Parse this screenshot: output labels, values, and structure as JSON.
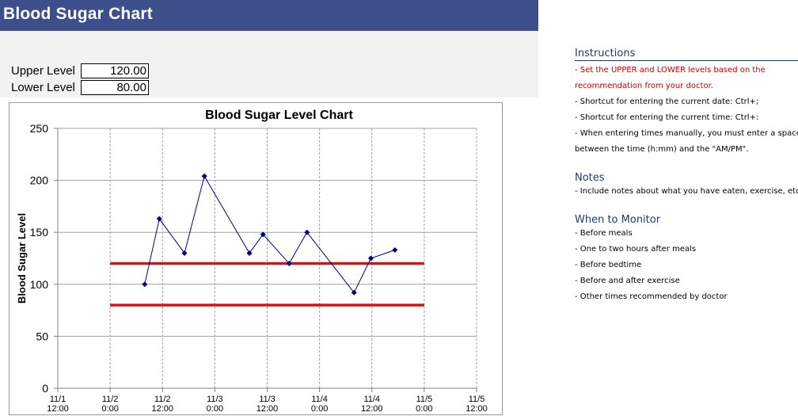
{
  "sheet": {
    "title": "Blood Sugar Chart",
    "upper_label": "Upper Level",
    "upper_value": "120.00",
    "lower_label": "Lower Level",
    "lower_value": "80.00"
  },
  "side": {
    "instructions_title": "Instructions",
    "instructions": [
      {
        "text": " - Set the UPPER and LOWER levels based on the",
        "color": "#cc0000"
      },
      {
        "text": "recommendation from your doctor.",
        "color": "#cc0000"
      },
      {
        "text": " - Shortcut for entering the current date: Ctrl+;",
        "color": "#000000"
      },
      {
        "text": " - Shortcut for entering the current time: Ctrl+:",
        "color": "#000000"
      },
      {
        "text": " - When entering times manually, you must enter a space",
        "color": "#000000"
      },
      {
        "text": "between the time (h:mm) and the \"AM/PM\".",
        "color": "#000000"
      }
    ],
    "notes_title": "Notes",
    "notes": [
      {
        "text": " - Include notes about what you have eaten, exercise, etc.",
        "color": "#000000"
      }
    ],
    "monitor_title": "When to Monitor",
    "monitor": [
      {
        "text": " - Before meals",
        "color": "#000000"
      },
      {
        "text": " - One to two hours after meals",
        "color": "#000000"
      },
      {
        "text": " - Before bedtime",
        "color": "#000000"
      },
      {
        "text": " - Before and after exercise",
        "color": "#000000"
      },
      {
        "text": " - Other times recommended by doctor",
        "color": "#000000"
      }
    ]
  },
  "chart_data": {
    "type": "line",
    "title": "Blood Sugar Level Chart",
    "ylabel": "Blood Sugar Level",
    "xlabel": "",
    "ylim": [
      0,
      250
    ],
    "yticks": [
      0,
      50,
      100,
      150,
      200,
      250
    ],
    "xlim_days": [
      1.5,
      5.5
    ],
    "xticks": [
      {
        "line1": "11/1",
        "line2": "12:00",
        "day": 1.5
      },
      {
        "line1": "11/2",
        "line2": "0:00",
        "day": 2.0
      },
      {
        "line1": "11/2",
        "line2": "12:00",
        "day": 2.5
      },
      {
        "line1": "11/3",
        "line2": "0:00",
        "day": 3.0
      },
      {
        "line1": "11/3",
        "line2": "12:00",
        "day": 3.5
      },
      {
        "line1": "11/4",
        "line2": "0:00",
        "day": 4.0
      },
      {
        "line1": "11/4",
        "line2": "12:00",
        "day": 4.5
      },
      {
        "line1": "11/5",
        "line2": "0:00",
        "day": 5.0
      },
      {
        "line1": "11/5",
        "line2": "12:00",
        "day": 5.5
      }
    ],
    "grid": true,
    "series": [
      {
        "name": "",
        "color": "#000080",
        "points": [
          {
            "day": 2.33,
            "value": 100
          },
          {
            "day": 2.47,
            "value": 163
          },
          {
            "day": 2.71,
            "value": 130
          },
          {
            "day": 2.9,
            "value": 204
          },
          {
            "day": 3.33,
            "value": 130
          },
          {
            "day": 3.46,
            "value": 148
          },
          {
            "day": 3.71,
            "value": 120
          },
          {
            "day": 3.88,
            "value": 150
          },
          {
            "day": 4.33,
            "value": 92
          },
          {
            "day": 4.49,
            "value": 125
          },
          {
            "day": 4.72,
            "value": 133
          }
        ]
      }
    ],
    "limits": [
      {
        "name": "Upper Level",
        "value": 120,
        "day_start": 2.0,
        "day_end": 5.0,
        "color": "#e01010"
      },
      {
        "name": "Lower Level",
        "value": 80,
        "day_start": 2.0,
        "day_end": 5.0,
        "color": "#e01010"
      }
    ]
  }
}
